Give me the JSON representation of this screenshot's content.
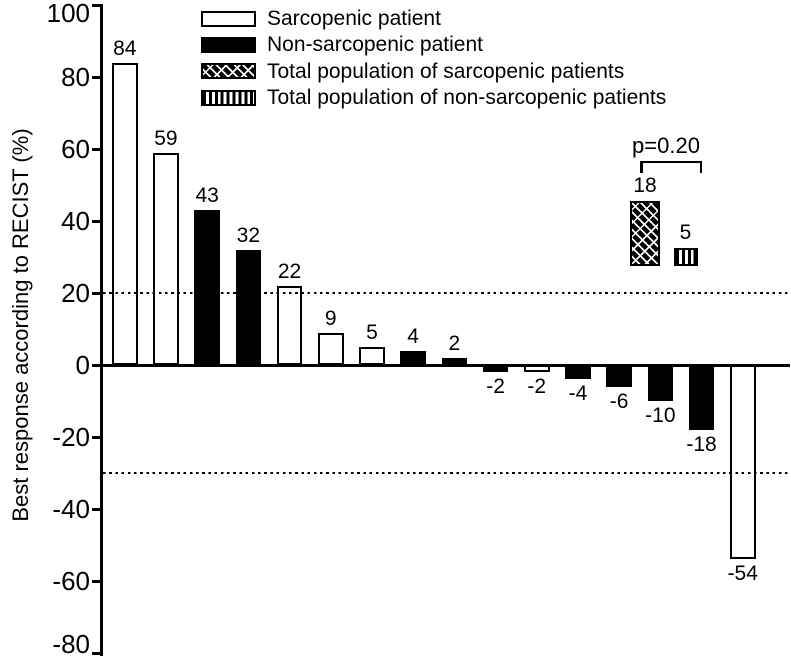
{
  "figure": {
    "background": "#ffffff",
    "ink_color": "#000000"
  },
  "chart_data": {
    "type": "bar",
    "subtype": "waterfall",
    "title": "",
    "xlabel": "",
    "ylabel": "Best response according to RECIST (%)",
    "ylim": [
      -80,
      100
    ],
    "yticks": [
      100,
      80,
      60,
      40,
      20,
      0,
      -20,
      -40,
      -60,
      -80
    ],
    "grid": false,
    "reference_lines": {
      "values": [
        20,
        -30
      ],
      "style": "dotted"
    },
    "legend_position": "top-left-inside",
    "legend": [
      {
        "label": "Sarcopenic patient",
        "fill": "open"
      },
      {
        "label": "Non-sarcopenic patient",
        "fill": "solid"
      },
      {
        "label": "Total population of sarcopenic patients",
        "fill": "hatch-diagonal"
      },
      {
        "label": "Total population of non-sarcopenic patients",
        "fill": "hatch-vertical"
      }
    ],
    "bars": [
      {
        "value": 84,
        "category": "Sarcopenic patient",
        "fill": "open"
      },
      {
        "value": 59,
        "category": "Sarcopenic patient",
        "fill": "open"
      },
      {
        "value": 43,
        "category": "Non-sarcopenic patient",
        "fill": "solid"
      },
      {
        "value": 32,
        "category": "Non-sarcopenic patient",
        "fill": "solid"
      },
      {
        "value": 22,
        "category": "Sarcopenic patient",
        "fill": "open"
      },
      {
        "value": 9,
        "category": "Sarcopenic patient",
        "fill": "open"
      },
      {
        "value": 5,
        "category": "Sarcopenic patient",
        "fill": "open"
      },
      {
        "value": 4,
        "category": "Non-sarcopenic patient",
        "fill": "solid"
      },
      {
        "value": 2,
        "category": "Non-sarcopenic patient",
        "fill": "solid"
      },
      {
        "value": -2,
        "category": "Non-sarcopenic patient",
        "fill": "solid"
      },
      {
        "value": -2,
        "category": "Sarcopenic patient",
        "fill": "open"
      },
      {
        "value": -4,
        "category": "Non-sarcopenic patient",
        "fill": "solid"
      },
      {
        "value": -6,
        "category": "Non-sarcopenic patient",
        "fill": "solid"
      },
      {
        "value": -10,
        "category": "Non-sarcopenic patient",
        "fill": "solid"
      },
      {
        "value": -18,
        "category": "Non-sarcopenic patient",
        "fill": "solid"
      },
      {
        "value": -54,
        "category": "Sarcopenic patient",
        "fill": "open"
      }
    ],
    "inset_comparison": {
      "p_label": "p=0.20",
      "bars": [
        {
          "value": 18,
          "category": "Total population of sarcopenic patients",
          "fill": "hatch-diagonal"
        },
        {
          "value": 5,
          "category": "Total population of non-sarcopenic patients",
          "fill": "hatch-vertical"
        }
      ]
    }
  }
}
